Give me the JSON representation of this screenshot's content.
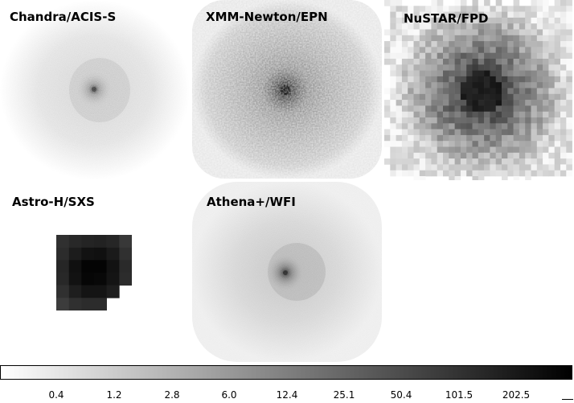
{
  "panels": [
    {
      "id": "chandra",
      "label": "Chandra/ACIS-S"
    },
    {
      "id": "xmm",
      "label": "XMM-Newton/EPN"
    },
    {
      "id": "nustar",
      "label": "NuSTAR/FPD"
    },
    {
      "id": "astroh",
      "label": "Astro-H/SXS"
    },
    {
      "id": "athena",
      "label": "Athena+/WFI"
    }
  ],
  "colorbar": {
    "gradient_from": "#ffffff",
    "gradient_to": "#000000",
    "ticks": [
      "0.4",
      "1.2",
      "2.8",
      "6.0",
      "12.4",
      "25.1",
      "50.4",
      "101.5",
      "202.5"
    ]
  }
}
